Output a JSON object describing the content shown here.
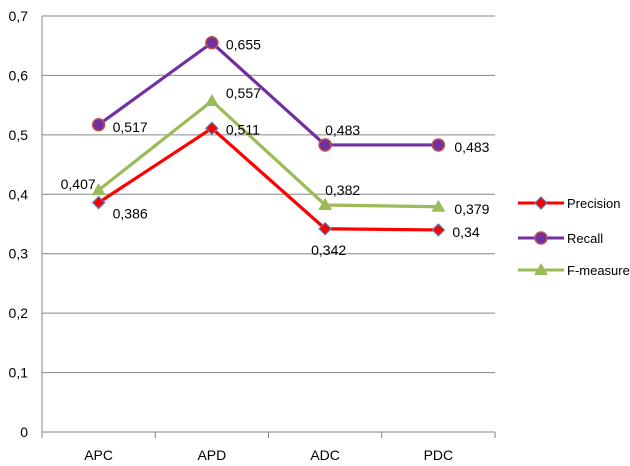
{
  "chart_data": {
    "type": "line",
    "title": "",
    "xlabel": "",
    "ylabel": "",
    "categories": [
      "APC",
      "APD",
      "ADC",
      "PDC"
    ],
    "ylim": [
      0,
      0.7
    ],
    "yticks": [
      {
        "value": 0,
        "label": "0"
      },
      {
        "value": 0.1,
        "label": "0,1"
      },
      {
        "value": 0.2,
        "label": "0,2"
      },
      {
        "value": 0.3,
        "label": "0,3"
      },
      {
        "value": 0.4,
        "label": "0,4"
      },
      {
        "value": 0.5,
        "label": "0,5"
      },
      {
        "value": 0.6,
        "label": "0,6"
      },
      {
        "value": 0.7,
        "label": "0,7"
      }
    ],
    "grid": true,
    "legend_position": "right",
    "series": [
      {
        "name": "Precision",
        "color": "#ff0000",
        "marker": "diamond",
        "values": [
          0.386,
          0.511,
          0.342,
          0.34
        ],
        "labels": [
          "0,386",
          "0,511",
          "0,342",
          "0,34"
        ]
      },
      {
        "name": "Recall",
        "color": "#7030a0",
        "marker": "circle",
        "values": [
          0.517,
          0.655,
          0.483,
          0.483
        ],
        "labels": [
          "0,517",
          "0,655",
          "0,483",
          "0,483"
        ]
      },
      {
        "name": "F-measures",
        "color": "#9bbb59",
        "marker": "triangle",
        "values": [
          0.407,
          0.557,
          0.382,
          0.379
        ],
        "labels": [
          "0,407",
          "0,557",
          "0,382",
          "0,379"
        ]
      }
    ]
  }
}
